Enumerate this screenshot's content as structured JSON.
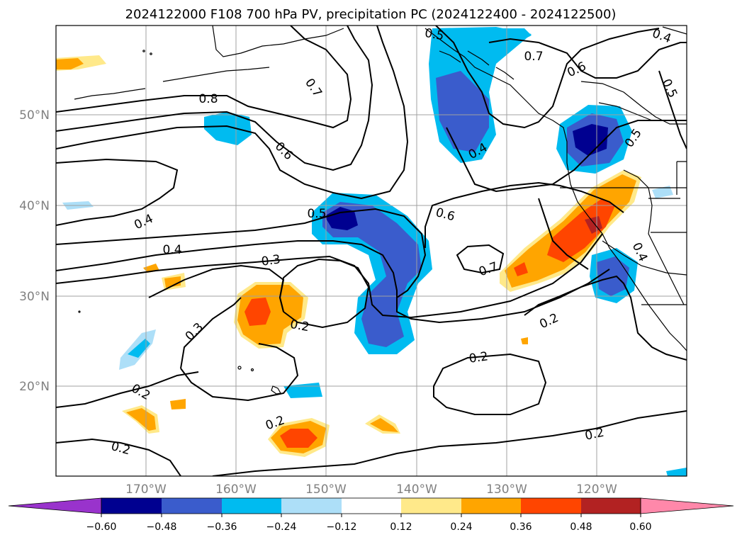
{
  "title": "2024122000 F108 700 hPa PV, precipitation PC (2024122400 - 2024122500)",
  "map": {
    "lon_ticks": [
      "170°W",
      "160°W",
      "150°W",
      "140°W",
      "130°W",
      "120°W"
    ],
    "lat_ticks": [
      "50°N",
      "40°N",
      "30°N",
      "20°N"
    ],
    "grid": true
  },
  "contour_labels": [
    "0.8",
    "0.7",
    "0.6",
    "0.5",
    "0.4",
    "0.4",
    "0.3",
    "0.3",
    "0.2",
    "0.2",
    "0.2",
    "0.2",
    "0.2",
    "0.6",
    "0.7",
    "0.7",
    "0.6",
    "0.5",
    "0.4",
    "0.5",
    "0.5",
    "0.4",
    "0.2",
    "0.4"
  ],
  "colorbar": {
    "ticks": [
      "−0.60",
      "−0.48",
      "−0.36",
      "−0.24",
      "−0.12",
      "0.12",
      "0.24",
      "0.36",
      "0.48",
      "0.60"
    ],
    "colors": [
      "#9933cc",
      "#000090",
      "#3a5ccc",
      "#00bbf0",
      "#addff8",
      "#ffffff",
      "#ffe98a",
      "#ffa500",
      "#ff4500",
      "#b22222",
      "#ff88aa"
    ]
  }
}
